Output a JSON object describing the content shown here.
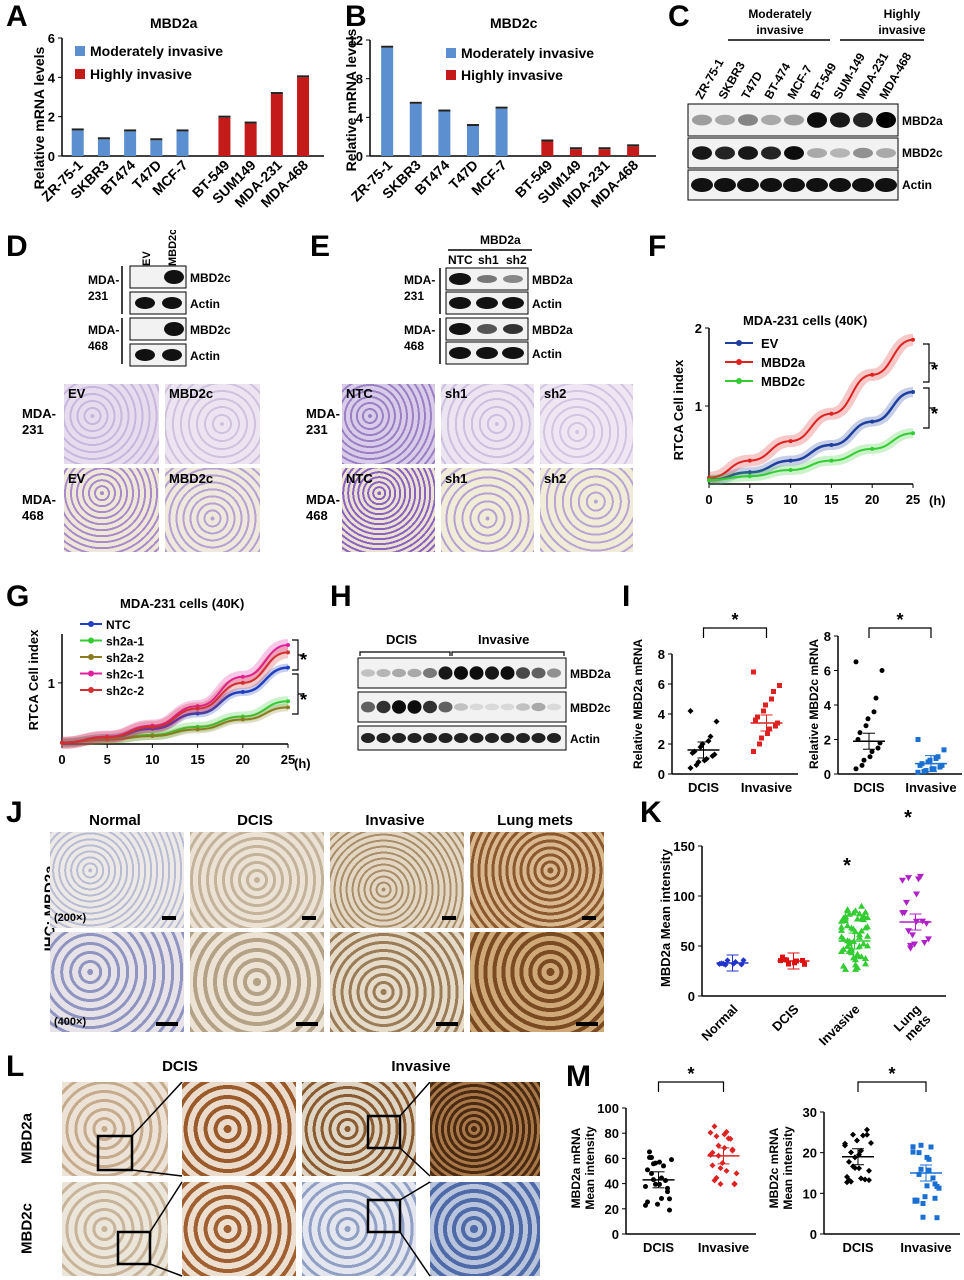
{
  "panel_letters": {
    "A": "A",
    "B": "B",
    "C": "C",
    "D": "D",
    "E": "E",
    "F": "F",
    "G": "G",
    "H": "H",
    "I": "I",
    "J": "J",
    "K": "K",
    "L": "L",
    "M": "M"
  },
  "legend": {
    "moderate": "Moderately invasive",
    "high": "Highly invasive"
  },
  "colors": {
    "blue": "#5b8fcf",
    "red": "#c41a1a",
    "green": "#33cc33",
    "darkblue": "#1f3f9f",
    "purple": "#b020c8",
    "olive": "#8a7a20",
    "pink": "#e020a0",
    "invasive_red": "#dd2222",
    "mdot_blue": "#1a6fd0"
  },
  "panelC": {
    "groups": [
      "Moderately invasive",
      "Highly invasive"
    ],
    "moderately": "Moderately",
    "moderately2": "invasive",
    "highly": "Highly",
    "highly2": "invasive",
    "lanes": [
      "ZR-75-1",
      "SKBR3",
      "T47D",
      "BT-474",
      "MCF-7",
      "BT-549",
      "SUM-149",
      "MDA-231",
      "MDA-468"
    ],
    "blots": [
      "MBD2a",
      "MBD2c",
      "Actin"
    ]
  },
  "panelD": {
    "lanes": [
      "EV",
      "MBD2c"
    ],
    "rows": [
      {
        "cell": "MDA-\n231",
        "a": "MBD2c",
        "b": "Actin"
      },
      {
        "cell": "MDA-\n468",
        "a": "MBD2c",
        "b": "Actin"
      }
    ],
    "photo_labels": [
      "EV",
      "MBD2c",
      "EV",
      "MBD2c"
    ],
    "side": [
      "MDA-",
      "231",
      "MDA-",
      "468"
    ]
  },
  "panelE": {
    "group": "MBD2a",
    "lanes": [
      "NTC",
      "sh1",
      "sh2"
    ],
    "blots": [
      "MBD2a",
      "Actin",
      "MBD2a",
      "Actin"
    ],
    "side": [
      "MDA-",
      "231",
      "MDA-",
      "468"
    ],
    "photo_labels": [
      "NTC",
      "sh1",
      "sh2",
      "NTC",
      "sh1",
      "sh2"
    ]
  },
  "panelH": {
    "groups": [
      "DCIS",
      "Invasive"
    ],
    "blots": [
      "MBD2a",
      "MBD2c",
      "Actin"
    ]
  },
  "panelJ": {
    "ylabel": "IHC: MBD2a",
    "columns": [
      "Normal",
      "DCIS",
      "Invasive",
      "Lung mets"
    ],
    "mag": [
      "(200×)",
      "(400×)"
    ]
  },
  "panelL": {
    "columns": [
      "DCIS",
      "Invasive"
    ],
    "rows": [
      "MBD2a",
      "MBD2c"
    ]
  },
  "star": "*",
  "chart_data": [
    {
      "panel": "A",
      "type": "bar",
      "title": "MBD2a",
      "ylabel": "Relative mRNA levels",
      "ylim": [
        0,
        6
      ],
      "yticks": [
        0,
        2,
        4,
        6
      ],
      "categories": [
        "ZR-75-1",
        "SKBR3",
        "BT474",
        "T47D",
        "MCF-7",
        "BT-549",
        "SUM149",
        "MDA-231",
        "MDA-468"
      ],
      "series": [
        {
          "name": "Moderately invasive",
          "values": [
            1.3,
            0.85,
            1.25,
            0.8,
            1.25,
            null,
            null,
            null,
            null
          ]
        },
        {
          "name": "Highly invasive",
          "values": [
            null,
            null,
            null,
            null,
            null,
            1.95,
            1.65,
            3.15,
            4.0
          ]
        }
      ]
    },
    {
      "panel": "B",
      "type": "bar",
      "title": "MBD2c",
      "ylabel": "Relative mRNA levels",
      "ylim": [
        0,
        12
      ],
      "yticks": [
        0,
        4,
        8,
        12
      ],
      "categories": [
        "ZR-75-1",
        "SKBR3",
        "BT474",
        "T47D",
        "MCF-7",
        "BT-549",
        "SUM149",
        "MDA-231",
        "MDA-468"
      ],
      "series": [
        {
          "name": "Moderately invasive",
          "values": [
            11.2,
            5.4,
            4.6,
            3.1,
            4.9,
            null,
            null,
            null,
            null
          ]
        },
        {
          "name": "Highly invasive",
          "values": [
            null,
            null,
            null,
            null,
            null,
            1.5,
            0.7,
            0.7,
            1.0
          ]
        }
      ]
    },
    {
      "panel": "F",
      "type": "line",
      "title": "MDA-231 cells (40K)",
      "ylabel": "RTCA Cell index",
      "xlabel": "(h)",
      "xlim": [
        0,
        25
      ],
      "ylim": [
        0,
        2
      ],
      "xticks": [
        0,
        5,
        10,
        15,
        20,
        25
      ],
      "yticks": [
        1,
        2
      ],
      "series": [
        {
          "name": "EV",
          "x": [
            0,
            5,
            10,
            15,
            20,
            25
          ],
          "values": [
            0.05,
            0.15,
            0.3,
            0.5,
            0.8,
            1.18
          ]
        },
        {
          "name": "MBD2a",
          "x": [
            0,
            5,
            10,
            15,
            20,
            25
          ],
          "values": [
            0.08,
            0.3,
            0.55,
            0.9,
            1.4,
            1.85
          ]
        },
        {
          "name": "MBD2c",
          "x": [
            0,
            5,
            10,
            15,
            20,
            25
          ],
          "values": [
            0.05,
            0.1,
            0.18,
            0.3,
            0.45,
            0.65
          ]
        }
      ]
    },
    {
      "panel": "G",
      "type": "line",
      "title": "MDA-231 cells (40K)",
      "ylabel": "RTCA Cell index",
      "xlabel": "(h)",
      "xlim": [
        0,
        25
      ],
      "ylim": [
        0,
        1.8
      ],
      "xticks": [
        0,
        5,
        10,
        15,
        20,
        25
      ],
      "yticks": [
        1
      ],
      "series": [
        {
          "name": "NTC",
          "x": [
            0,
            5,
            10,
            15,
            20,
            25
          ],
          "values": [
            0.02,
            0.1,
            0.25,
            0.5,
            0.85,
            1.25
          ]
        },
        {
          "name": "sh2a-1",
          "x": [
            0,
            5,
            10,
            15,
            20,
            25
          ],
          "values": [
            0.02,
            0.08,
            0.15,
            0.28,
            0.45,
            0.7
          ]
        },
        {
          "name": "sh2a-2",
          "x": [
            0,
            5,
            10,
            15,
            20,
            25
          ],
          "values": [
            0.02,
            0.07,
            0.13,
            0.24,
            0.4,
            0.6
          ]
        },
        {
          "name": "sh2c-1",
          "x": [
            0,
            5,
            10,
            15,
            20,
            25
          ],
          "values": [
            0.02,
            0.12,
            0.3,
            0.62,
            1.1,
            1.62
          ]
        },
        {
          "name": "sh2c-2",
          "x": [
            0,
            5,
            10,
            15,
            20,
            25
          ],
          "values": [
            0.02,
            0.11,
            0.28,
            0.58,
            1.0,
            1.5
          ]
        }
      ]
    },
    {
      "panel": "I1",
      "type": "scatter",
      "ylabel": "Relative MBD2a mRNA",
      "ylim": [
        0,
        8
      ],
      "yticks": [
        0,
        2,
        4,
        6,
        8
      ],
      "categories": [
        "DCIS",
        "Invasive"
      ],
      "means": [
        1.6,
        3.4
      ],
      "series": [
        {
          "name": "DCIS",
          "values": [
            0.4,
            0.6,
            0.8,
            0.9,
            1.0,
            1.2,
            1.3,
            1.4,
            1.5,
            1.8,
            2.0,
            2.2,
            2.5,
            3.5,
            4.2
          ]
        },
        {
          "name": "Invasive",
          "values": [
            1.5,
            2.0,
            2.4,
            2.7,
            3.0,
            3.2,
            3.4,
            3.6,
            3.8,
            4.2,
            4.6,
            5.0,
            5.5,
            5.9,
            6.8
          ]
        }
      ]
    },
    {
      "panel": "I2",
      "type": "scatter",
      "ylabel": "Relative MBD2c mRNA",
      "ylim": [
        0,
        8
      ],
      "yticks": [
        0,
        2,
        4,
        6,
        8
      ],
      "categories": [
        "DCIS",
        "Invasive"
      ],
      "means": [
        1.9,
        0.6
      ],
      "series": [
        {
          "name": "DCIS",
          "values": [
            0.3,
            0.5,
            0.8,
            1.0,
            1.3,
            1.5,
            1.8,
            2.0,
            2.4,
            2.8,
            3.2,
            3.6,
            4.4,
            6.0,
            6.5
          ]
        },
        {
          "name": "Invasive",
          "values": [
            0.1,
            0.15,
            0.2,
            0.3,
            0.3,
            0.4,
            0.5,
            0.5,
            0.6,
            0.7,
            0.8,
            0.9,
            1.0,
            1.4,
            2.0
          ]
        }
      ]
    },
    {
      "panel": "K",
      "type": "scatter",
      "ylabel": "MBD2a Mean intensity",
      "ylim": [
        0,
        150
      ],
      "yticks": [
        0,
        50,
        100,
        150
      ],
      "categories": [
        "Normal",
        "DCIS",
        "Invasive",
        "Lung\nmets"
      ],
      "means": [
        33,
        35,
        55,
        74
      ]
    },
    {
      "panel": "M1",
      "type": "scatter",
      "ylabel": "MBD2a mRNA\nMean intensity",
      "ylim": [
        0,
        100
      ],
      "yticks": [
        0,
        20,
        40,
        60,
        80,
        100
      ],
      "categories": [
        "DCIS",
        "Invasive"
      ],
      "means": [
        43,
        62
      ]
    },
    {
      "panel": "M2",
      "type": "scatter",
      "ylabel": "MBD2c mRNA\nMean intensity",
      "ylim": [
        0,
        30
      ],
      "yticks": [
        0,
        10,
        20,
        30
      ],
      "categories": [
        "DCIS",
        "Invasive"
      ],
      "means": [
        19,
        15
      ]
    }
  ]
}
